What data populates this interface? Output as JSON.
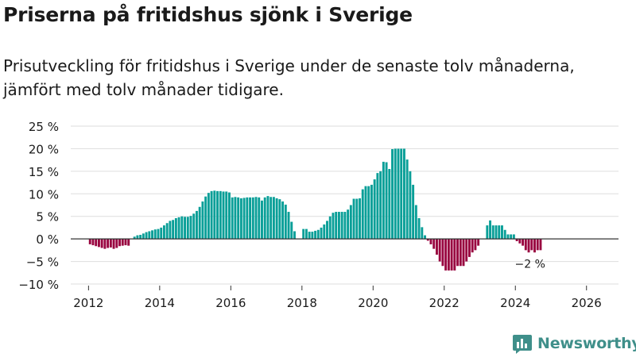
{
  "title": "Priserna på fritidshus sjönk i Sverige",
  "subtitle": {
    "line1": "Prisutveckling för fritidshus i Sverige under de senaste tolv månaderna,",
    "line2": "jämfört med tolv månader tidigare."
  },
  "brand": {
    "name": "Newsworthy",
    "color": "#3f8f8a",
    "logo_icon": "newsworthy-bars-icon"
  },
  "colors": {
    "positive": "#0a9f98",
    "negative": "#990540",
    "grid": "#dddddd",
    "zero": "#333333"
  },
  "chart_data": {
    "type": "bar",
    "x_start": "2012-01",
    "x_unit": "month",
    "xlim": [
      2011.5,
      2026.9
    ],
    "ylim": [
      -10,
      25
    ],
    "y_ticks": [
      -10,
      -5,
      0,
      5,
      10,
      15,
      20,
      25
    ],
    "y_tick_labels": [
      "−10 %",
      "−5 %",
      "0 %",
      "5 %",
      "10 %",
      "15 %",
      "20 %",
      "25 %"
    ],
    "x_ticks": [
      2012,
      2014,
      2016,
      2018,
      2020,
      2022,
      2024,
      2026
    ],
    "x_tick_labels": [
      "2012",
      "2014",
      "2016",
      "2018",
      "2020",
      "2022",
      "2024",
      "2026"
    ],
    "xlabel": "",
    "ylabel": "",
    "grid": true,
    "values": [
      -1.2,
      -1.4,
      -1.6,
      -1.8,
      -2.0,
      -2.2,
      -2.0,
      -1.9,
      -2.2,
      -2.0,
      -1.6,
      -1.5,
      -1.4,
      -1.5,
      0.0,
      0.5,
      0.8,
      0.9,
      1.2,
      1.5,
      1.7,
      1.9,
      2.1,
      2.2,
      2.5,
      3.0,
      3.5,
      4.0,
      4.2,
      4.6,
      4.8,
      5.0,
      4.9,
      4.9,
      5.1,
      5.6,
      6.2,
      7.1,
      8.3,
      9.4,
      10.2,
      10.6,
      10.7,
      10.6,
      10.6,
      10.5,
      10.5,
      10.3,
      9.2,
      9.3,
      9.2,
      9.0,
      9.1,
      9.2,
      9.2,
      9.2,
      9.3,
      9.2,
      8.5,
      9.2,
      9.5,
      9.3,
      9.3,
      9.0,
      8.8,
      8.3,
      7.6,
      6.0,
      3.8,
      1.7,
      0.0,
      0.0,
      2.2,
      2.2,
      1.6,
      1.6,
      1.8,
      2.0,
      2.5,
      3.2,
      4.0,
      5.0,
      5.8,
      6.0,
      6.0,
      6.0,
      6.0,
      6.5,
      7.5,
      8.9,
      8.9,
      9.0,
      11.0,
      11.7,
      11.7,
      12.0,
      13.2,
      14.6,
      15.0,
      17.1,
      17.0,
      15.5,
      19.9,
      20.0,
      20.0,
      20.0,
      20.0,
      17.6,
      15.0,
      12.0,
      7.5,
      4.6,
      2.6,
      0.8,
      -0.4,
      -1.2,
      -2.2,
      -3.5,
      -5.0,
      -6.0,
      -7.0,
      -7.0,
      -7.0,
      -7.0,
      -6.0,
      -6.0,
      -6.0,
      -5.0,
      -4.0,
      -3.0,
      -2.5,
      -1.5,
      0.0,
      0.0,
      3.0,
      4.1,
      3.0,
      3.0,
      3.0,
      3.0,
      2.0,
      1.0,
      1.0,
      1.0,
      -0.5,
      -1.0,
      -1.5,
      -2.5,
      -3.0,
      -2.5,
      -3.0,
      -2.5,
      -2.5
    ],
    "annotation": {
      "label": "−2 %",
      "at": "last"
    }
  }
}
